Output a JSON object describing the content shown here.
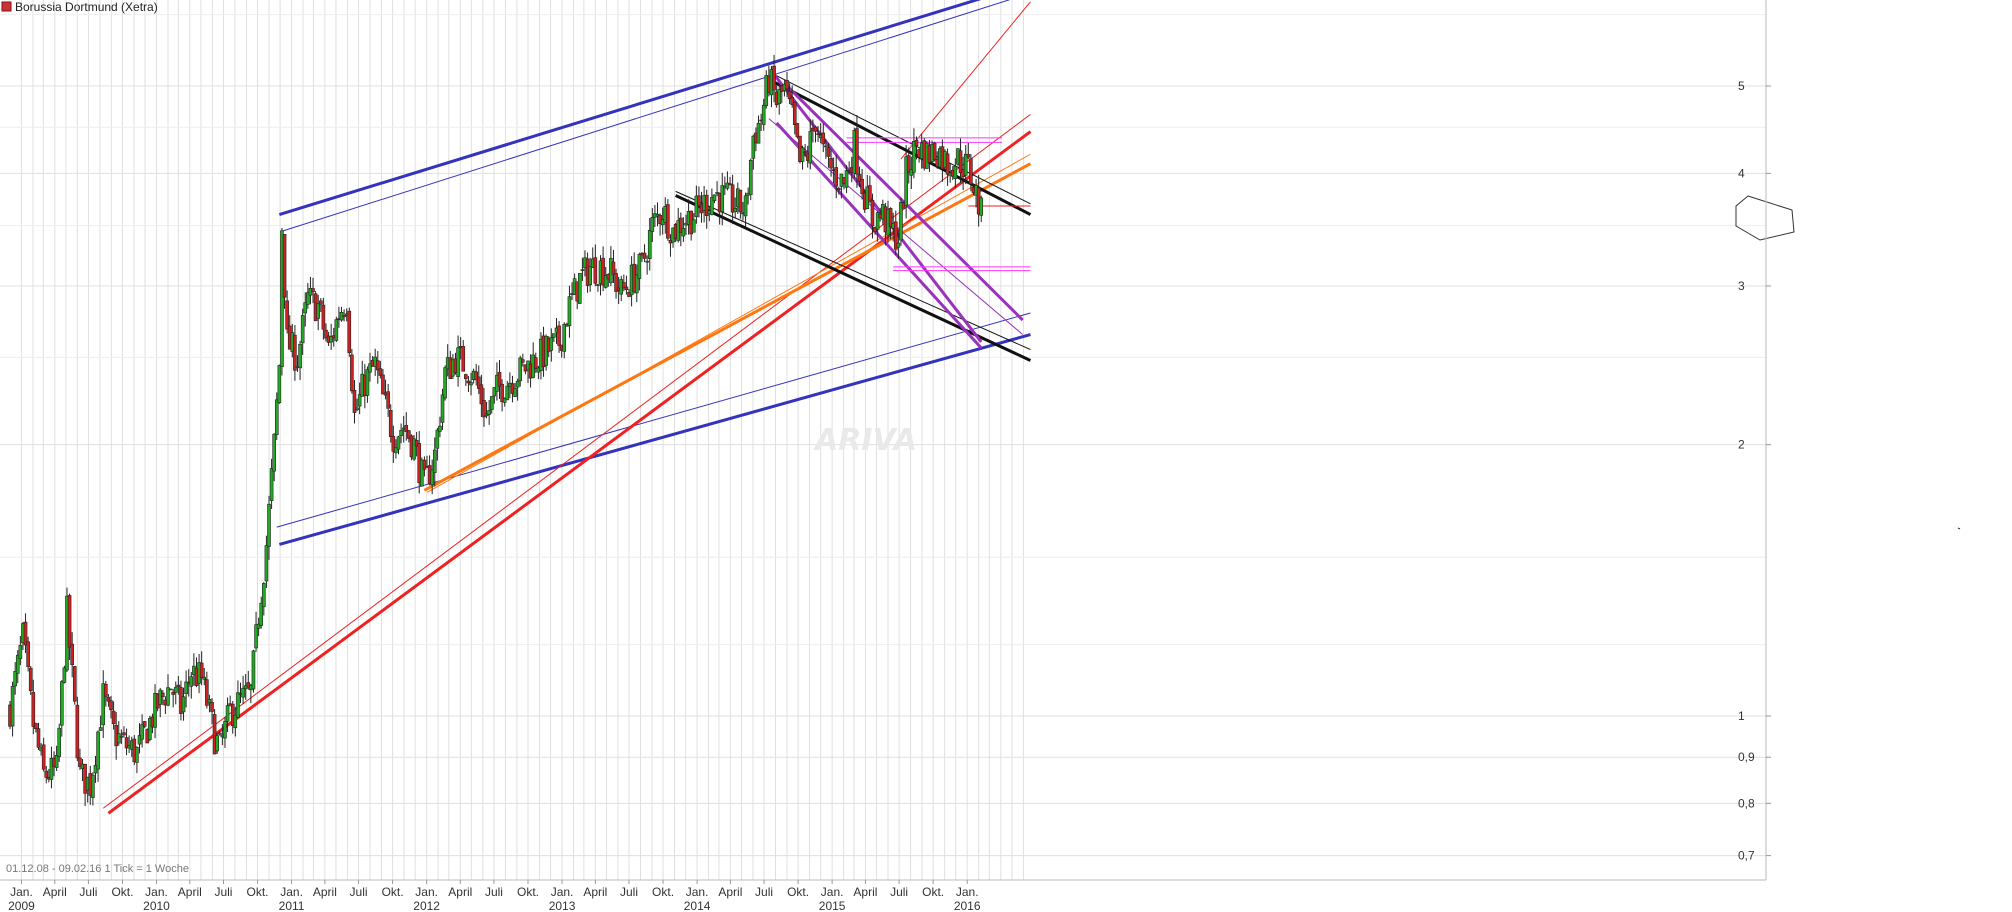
{
  "chart_data": {
    "type": "candlestick",
    "title": "Borussia Dortmund (Xetra)",
    "footer": "01.12.08 - 09.02.16   1 Tick = 1 Woche",
    "watermark": "ARIVA",
    "y_scale": "log",
    "ylim": [
      0.64,
      6.2
    ],
    "y_ticks": [
      {
        "value": 5,
        "label": "5"
      },
      {
        "value": 4,
        "label": "4"
      },
      {
        "value": 3,
        "label": "3"
      },
      {
        "value": 2,
        "label": "2"
      },
      {
        "value": 1,
        "label": "1"
      },
      {
        "value": 0.9,
        "label": "0,9"
      },
      {
        "value": 0.8,
        "label": "0,8"
      },
      {
        "value": 0.7,
        "label": "0,7"
      }
    ],
    "x_range": [
      "2008-12-01",
      "2016-02-09"
    ],
    "x_ticks": [
      {
        "date": "2009-01-01",
        "label": "Jan.",
        "year": "2009"
      },
      {
        "date": "2009-04-01",
        "label": "April",
        "year": ""
      },
      {
        "date": "2009-07-01",
        "label": "Juli",
        "year": ""
      },
      {
        "date": "2009-10-01",
        "label": "Okt.",
        "year": ""
      },
      {
        "date": "2010-01-01",
        "label": "Jan.",
        "year": "2010"
      },
      {
        "date": "2010-04-01",
        "label": "April",
        "year": ""
      },
      {
        "date": "2010-07-01",
        "label": "Juli",
        "year": ""
      },
      {
        "date": "2010-10-01",
        "label": "Okt.",
        "year": ""
      },
      {
        "date": "2011-01-01",
        "label": "Jan.",
        "year": "2011"
      },
      {
        "date": "2011-04-01",
        "label": "April",
        "year": ""
      },
      {
        "date": "2011-07-01",
        "label": "Juli",
        "year": ""
      },
      {
        "date": "2011-10-01",
        "label": "Okt.",
        "year": ""
      },
      {
        "date": "2012-01-01",
        "label": "Jan.",
        "year": "2012"
      },
      {
        "date": "2012-04-01",
        "label": "April",
        "year": ""
      },
      {
        "date": "2012-07-01",
        "label": "Juli",
        "year": ""
      },
      {
        "date": "2012-10-01",
        "label": "Okt.",
        "year": ""
      },
      {
        "date": "2013-01-01",
        "label": "Jan.",
        "year": "2013"
      },
      {
        "date": "2013-04-01",
        "label": "April",
        "year": ""
      },
      {
        "date": "2013-07-01",
        "label": "Juli",
        "year": ""
      },
      {
        "date": "2013-10-01",
        "label": "Okt.",
        "year": ""
      },
      {
        "date": "2014-01-01",
        "label": "Jan.",
        "year": "2014"
      },
      {
        "date": "2014-04-01",
        "label": "April",
        "year": ""
      },
      {
        "date": "2014-07-01",
        "label": "Juli",
        "year": ""
      },
      {
        "date": "2014-10-01",
        "label": "Okt.",
        "year": ""
      },
      {
        "date": "2015-01-01",
        "label": "Jan.",
        "year": "2015"
      },
      {
        "date": "2015-04-01",
        "label": "April",
        "year": ""
      },
      {
        "date": "2015-07-01",
        "label": "Juli",
        "year": ""
      },
      {
        "date": "2015-10-01",
        "label": "Okt.",
        "year": ""
      },
      {
        "date": "2016-01-01",
        "label": "Jan.",
        "year": "2016"
      }
    ],
    "colors": {
      "up": "#22aa22",
      "down": "#cc2222",
      "grid": "#e0e0e0",
      "blue_trend": "#3333bb",
      "red_trend": "#ee2222",
      "orange_trend": "#ff7711",
      "black_trend": "#111111",
      "purple_trend": "#9933bb",
      "magenta_level": "#ff33ff"
    },
    "price_path": [
      [
        "2008-12-01",
        1.02
      ],
      [
        "2009-01-05",
        1.22
      ],
      [
        "2009-02-02",
        0.98
      ],
      [
        "2009-03-02",
        0.86
      ],
      [
        "2009-04-06",
        0.87
      ],
      [
        "2009-05-04",
        1.3
      ],
      [
        "2009-06-08",
        0.86
      ],
      [
        "2009-07-06",
        0.84
      ],
      [
        "2009-08-10",
        1.05
      ],
      [
        "2009-09-07",
        0.96
      ],
      [
        "2009-10-05",
        0.93
      ],
      [
        "2009-11-09",
        0.91
      ],
      [
        "2009-12-07",
        0.97
      ],
      [
        "2010-01-04",
        1.03
      ],
      [
        "2010-02-08",
        1.08
      ],
      [
        "2010-03-08",
        1.02
      ],
      [
        "2010-04-05",
        1.12
      ],
      [
        "2010-05-03",
        1.1
      ],
      [
        "2010-06-07",
        0.95
      ],
      [
        "2010-06-21",
        0.92
      ],
      [
        "2010-07-19",
        1.01
      ],
      [
        "2010-08-16",
        1.04
      ],
      [
        "2010-09-13",
        1.06
      ],
      [
        "2010-10-04",
        1.3
      ],
      [
        "2010-10-25",
        1.55
      ],
      [
        "2010-11-15",
        2.0
      ],
      [
        "2010-11-29",
        2.45
      ],
      [
        "2010-12-06",
        3.5
      ],
      [
        "2010-12-20",
        2.6
      ],
      [
        "2011-01-17",
        2.5
      ],
      [
        "2011-02-14",
        2.9
      ],
      [
        "2011-03-14",
        2.85
      ],
      [
        "2011-04-11",
        2.55
      ],
      [
        "2011-05-09",
        2.8
      ],
      [
        "2011-05-30",
        2.9
      ],
      [
        "2011-06-20",
        2.15
      ],
      [
        "2011-07-18",
        2.35
      ],
      [
        "2011-08-15",
        2.45
      ],
      [
        "2011-09-05",
        2.25
      ],
      [
        "2011-10-03",
        2.05
      ],
      [
        "2011-10-31",
        2.1
      ],
      [
        "2011-11-28",
        2.0
      ],
      [
        "2011-12-26",
        1.8
      ],
      [
        "2012-01-23",
        1.95
      ],
      [
        "2012-02-20",
        2.4
      ],
      [
        "2012-03-19",
        2.5
      ],
      [
        "2012-04-16",
        2.45
      ],
      [
        "2012-05-14",
        2.35
      ],
      [
        "2012-06-11",
        2.15
      ],
      [
        "2012-07-09",
        2.3
      ],
      [
        "2012-08-06",
        2.35
      ],
      [
        "2012-09-03",
        2.4
      ],
      [
        "2012-10-01",
        2.45
      ],
      [
        "2012-10-29",
        2.5
      ],
      [
        "2012-11-26",
        2.55
      ],
      [
        "2012-12-24",
        2.6
      ],
      [
        "2013-01-21",
        2.85
      ],
      [
        "2013-02-18",
        3.05
      ],
      [
        "2013-03-18",
        3.15
      ],
      [
        "2013-04-15",
        3.15
      ],
      [
        "2013-05-13",
        3.1
      ],
      [
        "2013-06-10",
        2.95
      ],
      [
        "2013-07-08",
        3.05
      ],
      [
        "2013-08-05",
        3.15
      ],
      [
        "2013-09-02",
        3.5
      ],
      [
        "2013-09-30",
        3.65
      ],
      [
        "2013-10-28",
        3.45
      ],
      [
        "2013-11-25",
        3.55
      ],
      [
        "2013-12-23",
        3.6
      ],
      [
        "2014-01-20",
        3.7
      ],
      [
        "2014-02-17",
        3.8
      ],
      [
        "2014-03-17",
        3.75
      ],
      [
        "2014-04-14",
        3.7
      ],
      [
        "2014-05-12",
        3.65
      ],
      [
        "2014-06-02",
        4.4
      ],
      [
        "2014-06-23",
        4.6
      ],
      [
        "2014-07-14",
        5.1
      ],
      [
        "2014-08-04",
        4.8
      ],
      [
        "2014-08-25",
        4.95
      ],
      [
        "2014-09-15",
        4.6
      ],
      [
        "2014-10-06",
        4.1
      ],
      [
        "2014-10-27",
        4.2
      ],
      [
        "2014-11-17",
        4.6
      ],
      [
        "2014-12-08",
        4.2
      ],
      [
        "2015-01-05",
        4.0
      ],
      [
        "2015-02-02",
        3.9
      ],
      [
        "2015-03-02",
        4.3
      ],
      [
        "2015-03-23",
        3.9
      ],
      [
        "2015-04-20",
        3.55
      ],
      [
        "2015-05-18",
        3.6
      ],
      [
        "2015-06-08",
        3.45
      ],
      [
        "2015-06-29",
        3.4
      ],
      [
        "2015-07-20",
        4.0
      ],
      [
        "2015-08-17",
        4.3
      ],
      [
        "2015-09-14",
        4.2
      ],
      [
        "2015-10-12",
        4.25
      ],
      [
        "2015-11-09",
        4.1
      ],
      [
        "2015-12-07",
        4.15
      ],
      [
        "2016-01-04",
        4.05
      ],
      [
        "2016-01-25",
        3.8
      ],
      [
        "2016-02-08",
        3.6
      ]
    ],
    "trendlines": [
      {
        "color": "blue_trend",
        "width": 3,
        "from": [
          "2010-11-29",
          3.6
        ],
        "to": [
          "2016-06-20",
          6.5
        ]
      },
      {
        "color": "blue_trend",
        "width": 1,
        "from": [
          "2010-12-06",
          3.45
        ],
        "to": [
          "2016-05-30",
          6.3
        ]
      },
      {
        "color": "blue_trend",
        "width": 3,
        "from": [
          "2010-11-29",
          1.55
        ],
        "to": [
          "2016-06-20",
          2.65
        ]
      },
      {
        "color": "blue_trend",
        "width": 1,
        "from": [
          "2010-11-22",
          1.62
        ],
        "to": [
          "2016-06-20",
          2.8
        ]
      },
      {
        "color": "red_trend",
        "width": 3,
        "from": [
          "2009-08-24",
          0.78
        ],
        "to": [
          "2016-06-20",
          4.45
        ]
      },
      {
        "color": "red_trend",
        "width": 1,
        "from": [
          "2009-08-10",
          0.79
        ],
        "to": [
          "2016-06-20",
          4.65
        ]
      },
      {
        "color": "red_trend",
        "width": 1,
        "from": [
          "2015-07-06",
          4.15
        ],
        "to": [
          "2016-06-20",
          6.2
        ]
      },
      {
        "color": "orange_trend",
        "width": 3,
        "from": [
          "2011-12-26",
          1.78
        ],
        "to": [
          "2016-06-20",
          4.1
        ]
      },
      {
        "color": "orange_trend",
        "width": 1,
        "from": [
          "2012-01-02",
          1.77
        ],
        "to": [
          "2016-06-20",
          4.2
        ]
      },
      {
        "color": "black_trend",
        "width": 3,
        "from": [
          "2013-11-04",
          3.78
        ],
        "to": [
          "2016-06-20",
          2.48
        ]
      },
      {
        "color": "black_trend",
        "width": 1,
        "from": [
          "2013-11-04",
          3.82
        ],
        "to": [
          "2016-06-20",
          2.55
        ]
      },
      {
        "color": "black_trend",
        "width": 3,
        "from": [
          "2014-07-28",
          5.05
        ],
        "to": [
          "2016-06-20",
          3.6
        ]
      },
      {
        "color": "black_trend",
        "width": 1,
        "from": [
          "2014-07-28",
          5.15
        ],
        "to": [
          "2016-06-20",
          3.7
        ]
      },
      {
        "color": "purple_trend",
        "width": 3,
        "from": [
          "2014-07-28",
          5.15
        ],
        "to": [
          "2016-02-08",
          2.6
        ]
      },
      {
        "color": "purple_trend",
        "width": 3,
        "from": [
          "2014-08-04",
          4.55
        ],
        "to": [
          "2016-02-08",
          2.56
        ]
      },
      {
        "color": "purple_trend",
        "width": 1,
        "from": [
          "2014-07-14",
          4.6
        ],
        "to": [
          "2016-05-30",
          2.65
        ]
      },
      {
        "color": "purple_trend",
        "width": 3,
        "from": [
          "2014-09-01",
          5.0
        ],
        "to": [
          "2016-05-30",
          2.75
        ]
      },
      {
        "color": "magenta_level",
        "width": 1,
        "from": [
          "2015-02-09",
          4.38
        ],
        "to": [
          "2016-04-04",
          4.38
        ]
      },
      {
        "color": "magenta_level",
        "width": 1,
        "from": [
          "2015-02-09",
          4.33
        ],
        "to": [
          "2016-04-04",
          4.33
        ]
      },
      {
        "color": "magenta_level",
        "width": 1,
        "from": [
          "2015-06-15",
          3.15
        ],
        "to": [
          "2016-06-20",
          3.15
        ]
      },
      {
        "color": "magenta_level",
        "width": 1,
        "from": [
          "2015-06-15",
          3.12
        ],
        "to": [
          "2016-06-20",
          3.12
        ]
      },
      {
        "color": "red_trend",
        "width": 1,
        "from": [
          "2016-01-04",
          3.68
        ],
        "to": [
          "2016-06-20",
          3.68
        ]
      }
    ]
  }
}
